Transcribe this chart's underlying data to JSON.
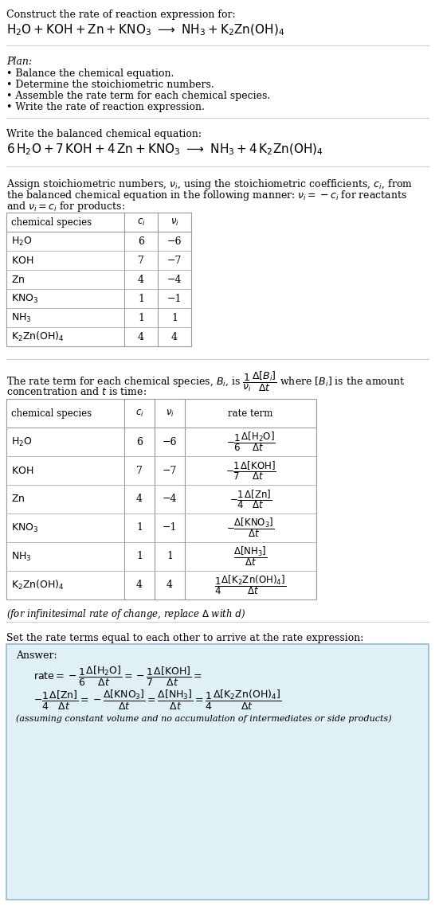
{
  "bg_color": "#ffffff",
  "answer_box_color": "#dff0f7",
  "answer_border_color": "#90bcd0",
  "table_border_color": "#999999",
  "fig_width": 5.46,
  "fig_height": 11.38,
  "table1_data": [
    [
      "H_2O",
      "6",
      "-6"
    ],
    [
      "KOH",
      "7",
      "-7"
    ],
    [
      "Zn",
      "4",
      "-4"
    ],
    [
      "KNO_3",
      "1",
      "-1"
    ],
    [
      "NH_3",
      "1",
      "1"
    ],
    [
      "K_2Zn(OH)_4",
      "4",
      "4"
    ]
  ],
  "table2_data": [
    [
      "H_2O",
      "6",
      "-6"
    ],
    [
      "KOH",
      "7",
      "-7"
    ],
    [
      "Zn",
      "4",
      "-4"
    ],
    [
      "KNO_3",
      "1",
      "-1"
    ],
    [
      "NH_3",
      "1",
      "1"
    ],
    [
      "K_2Zn(OH)_4",
      "4",
      "4"
    ]
  ]
}
